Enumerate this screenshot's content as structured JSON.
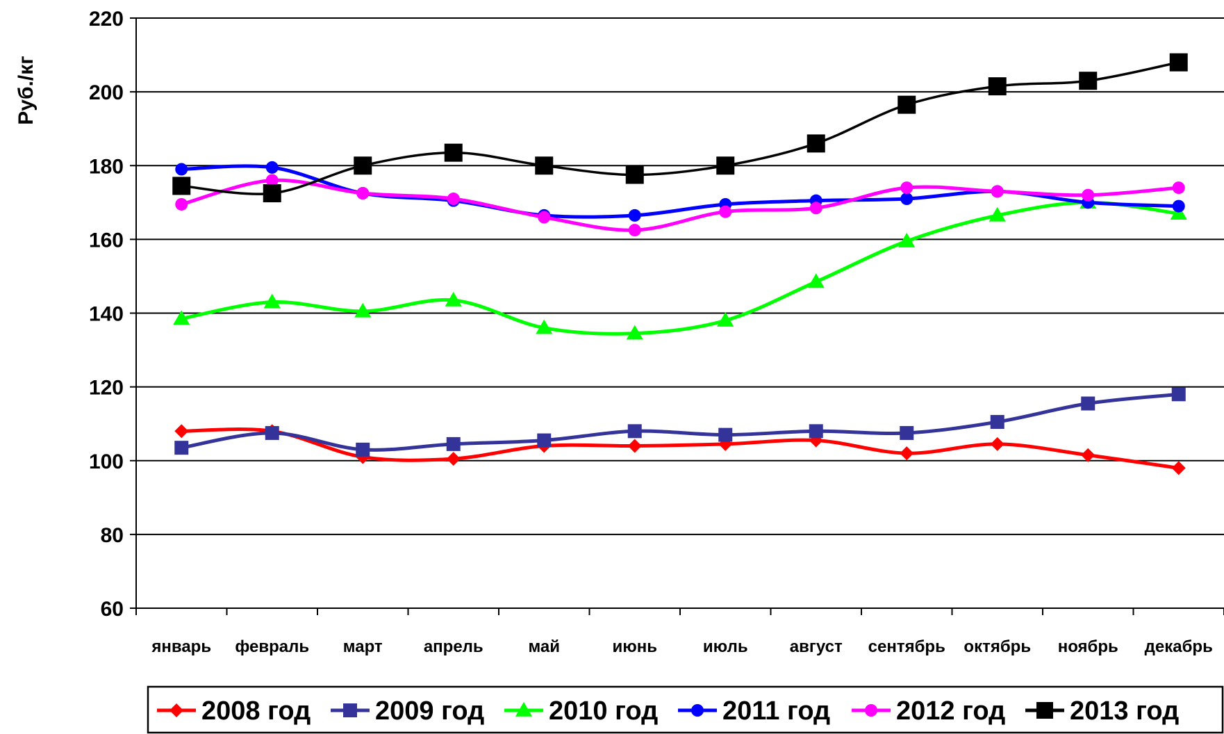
{
  "chart_data": {
    "type": "line",
    "title": "",
    "xlabel": "",
    "ylabel": "Руб./кг",
    "ylim": [
      60,
      220
    ],
    "yticks": [
      60,
      80,
      100,
      120,
      140,
      160,
      180,
      200,
      220
    ],
    "grid": "horizontal",
    "legend_position": "bottom",
    "categories": [
      "январь",
      "февраль",
      "март",
      "апрель",
      "май",
      "июнь",
      "июль",
      "август",
      "сентябрь",
      "октябрь",
      "ноябрь",
      "декабрь"
    ],
    "series": [
      {
        "name": "2008 год",
        "color": "#ff0000",
        "marker": "diamond",
        "values": [
          108,
          108,
          101,
          100.5,
          104,
          104,
          104.5,
          105.5,
          102,
          104.5,
          101.5,
          98
        ]
      },
      {
        "name": "2009 год",
        "color": "#333399",
        "marker": "square",
        "values": [
          103.5,
          107.5,
          103,
          104.5,
          105.5,
          108,
          107,
          108,
          107.5,
          110.5,
          115.5,
          118
        ]
      },
      {
        "name": "2010 год",
        "color": "#00ff00",
        "marker": "triangle",
        "values": [
          138.5,
          143,
          140.5,
          143.5,
          136,
          134.5,
          138,
          148.5,
          159.5,
          166.5,
          170,
          167
        ]
      },
      {
        "name": "2011 год",
        "color": "#0000ff",
        "marker": "circle",
        "values": [
          179,
          179.5,
          172.5,
          170.5,
          166.5,
          166.5,
          169.5,
          170.5,
          171,
          173,
          170,
          169
        ]
      },
      {
        "name": "2012 год",
        "color": "#ff00ff",
        "marker": "circle",
        "values": [
          169.5,
          176,
          172.5,
          171,
          166,
          162.5,
          167.5,
          168.5,
          174,
          173,
          172,
          174
        ]
      },
      {
        "name": "2013 год",
        "color": "#000000",
        "marker": "square",
        "values": [
          174.5,
          172.5,
          180,
          183.5,
          180,
          177.5,
          180,
          186,
          196.5,
          201.5,
          203,
          208
        ]
      }
    ]
  }
}
